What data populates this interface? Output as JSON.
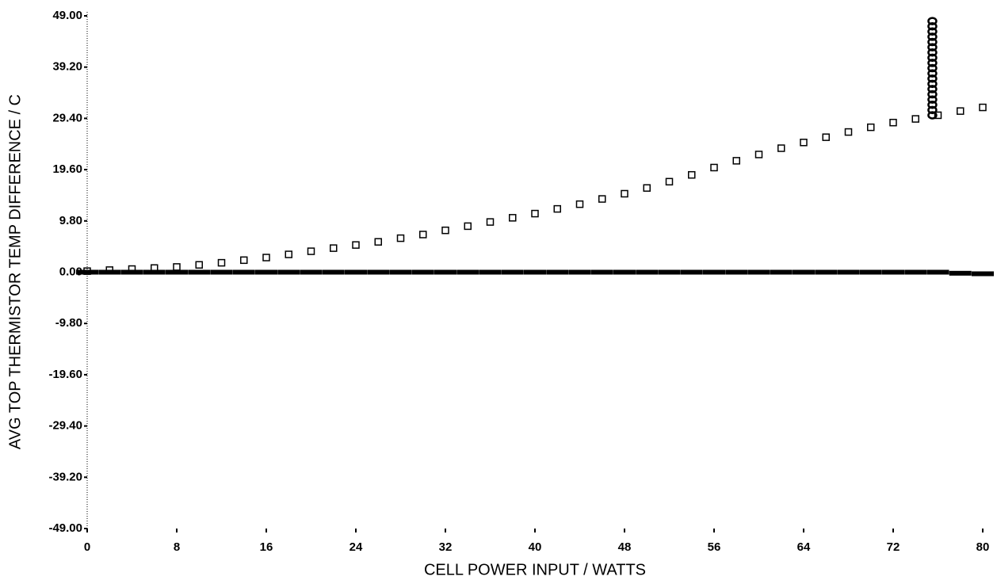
{
  "chart_data": {
    "type": "scatter",
    "x_label": "CELL POWER INPUT / WATTS",
    "y_label": "AVG TOP THERMISTOR TEMP DIFFERENCE / C",
    "xlim": [
      0,
      80
    ],
    "xticks": [
      0,
      8,
      16,
      24,
      32,
      40,
      48,
      56,
      64,
      72,
      80
    ],
    "ylim": [
      -49,
      49
    ],
    "yticks": [
      {
        "value": 49,
        "label": "49.00"
      },
      {
        "value": 39.2,
        "label": "39.20"
      },
      {
        "value": 29.4,
        "label": "29.40"
      },
      {
        "value": 19.6,
        "label": "19.60"
      },
      {
        "value": 9.8,
        "label": "9.80"
      },
      {
        "value": 0,
        "label": "0.00"
      },
      {
        "value": -9.8,
        "label": "-9.80"
      },
      {
        "value": -19.6,
        "label": "-19.60"
      },
      {
        "value": -29.4,
        "label": "-29.40"
      },
      {
        "value": -39.2,
        "label": "-39.20"
      },
      {
        "value": -49,
        "label": "-49.00"
      }
    ],
    "grid": false,
    "series": [
      {
        "color": "#000000",
        "marker": "square",
        "x": [
          0,
          2,
          4,
          6,
          8,
          10,
          12,
          14,
          16,
          18,
          20,
          22,
          24,
          26,
          28,
          30,
          32,
          34,
          36,
          38,
          40,
          42,
          44,
          46,
          48,
          50,
          52,
          54,
          56,
          58,
          60,
          62,
          64,
          66,
          68,
          70,
          72,
          74,
          76,
          78,
          80
        ],
        "values": [
          0.2,
          0.4,
          0.6,
          0.8,
          1.0,
          1.4,
          1.8,
          2.3,
          2.8,
          3.4,
          4.0,
          4.6,
          5.2,
          5.8,
          6.5,
          7.2,
          8.0,
          8.8,
          9.6,
          10.4,
          11.2,
          12.1,
          13.0,
          14.0,
          15.0,
          16.1,
          17.3,
          18.6,
          20.0,
          21.3,
          22.5,
          23.7,
          24.8,
          25.8,
          26.8,
          27.7,
          28.6,
          29.3,
          30.0,
          30.8,
          31.5
        ]
      },
      {
        "color": "#000000",
        "marker": "dot",
        "x": [
          0,
          2,
          4,
          6,
          8,
          10,
          12,
          14,
          16,
          18,
          20,
          22,
          24,
          26,
          28,
          30,
          32,
          34,
          36,
          38,
          40,
          42,
          44,
          46,
          48,
          50,
          52,
          54,
          56,
          58,
          60,
          62,
          64,
          66,
          68,
          70,
          72,
          74,
          76,
          78,
          80
        ],
        "values": [
          0,
          0,
          0,
          0,
          0,
          0,
          0,
          0,
          0,
          0,
          0,
          0,
          0,
          0,
          0,
          0,
          0,
          0,
          0,
          0,
          0,
          0,
          0,
          0,
          0,
          0,
          0,
          0,
          0,
          0,
          0,
          0,
          0,
          0,
          0,
          0,
          0,
          0,
          0,
          -0.2,
          -0.3
        ]
      },
      {
        "color": "#000000",
        "marker": "circle",
        "x": [
          75.5,
          75.5,
          75.5,
          75.5,
          75.5,
          75.5,
          75.5,
          75.5,
          75.5,
          75.5,
          75.5,
          75.5,
          75.5,
          75.5,
          75.5,
          75.5,
          75.5,
          75.5,
          75.5
        ],
        "values": [
          30,
          31,
          32,
          33,
          34,
          35,
          36,
          37,
          38,
          39,
          40,
          41,
          42,
          43,
          44,
          45,
          46,
          47,
          48
        ]
      }
    ]
  }
}
